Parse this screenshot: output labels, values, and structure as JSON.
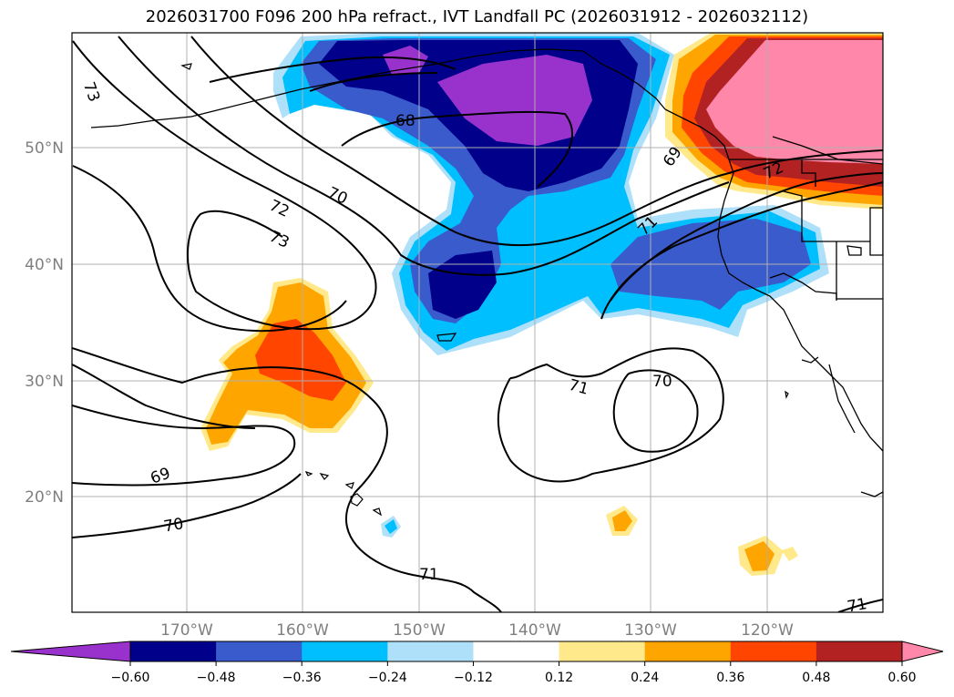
{
  "title": "2026031700 F096 200 hPa refract., IVT Landfall PC (2026031912 - 2026032112)",
  "lat_labels": [
    "50°N",
    "40°N",
    "30°N",
    "20°N"
  ],
  "lon_labels": [
    "170°W",
    "160°W",
    "150°W",
    "140°W",
    "130°W",
    "120°W"
  ],
  "contour_labels": [
    "73",
    "72",
    "73",
    "70",
    "68",
    "69",
    "71",
    "72",
    "71",
    "70",
    "69",
    "70",
    "71",
    "71"
  ],
  "colorbar": {
    "extend": "both",
    "tick_labels": [
      "−0.60",
      "−0.48",
      "−0.36",
      "−0.24",
      "−0.12",
      "0.12",
      "0.24",
      "0.36",
      "0.48",
      "0.60"
    ],
    "colors": [
      "#9932cc",
      "#00008b",
      "#3a5bcc",
      "#00bfff",
      "#aee0fa",
      "#ffffff",
      "#ffe98a",
      "#ffa500",
      "#ff4500",
      "#b22222",
      "#ff88aa"
    ]
  }
}
